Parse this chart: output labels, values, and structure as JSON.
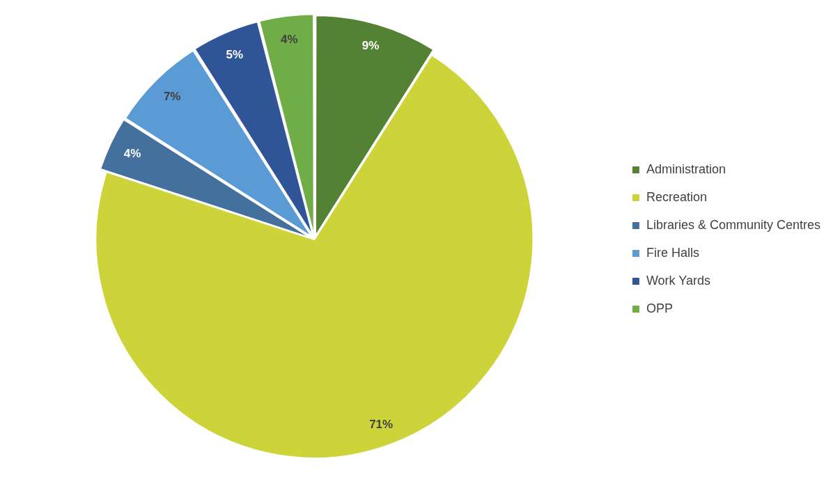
{
  "chart_data": {
    "type": "pie",
    "categories": [
      "Administration",
      "Recreation",
      "Libraries & Community Centres",
      "Fire Halls",
      "Work Yards",
      "OPP"
    ],
    "values": [
      9,
      71,
      4,
      7,
      5,
      4
    ],
    "colors": [
      "#548235",
      "#cdd43a",
      "#44709d",
      "#5b9bd5",
      "#2f5597",
      "#70ad47"
    ],
    "value_labels": [
      "9%",
      "71%",
      "4%",
      "7%",
      "5%",
      "4%"
    ],
    "legend": "right"
  }
}
